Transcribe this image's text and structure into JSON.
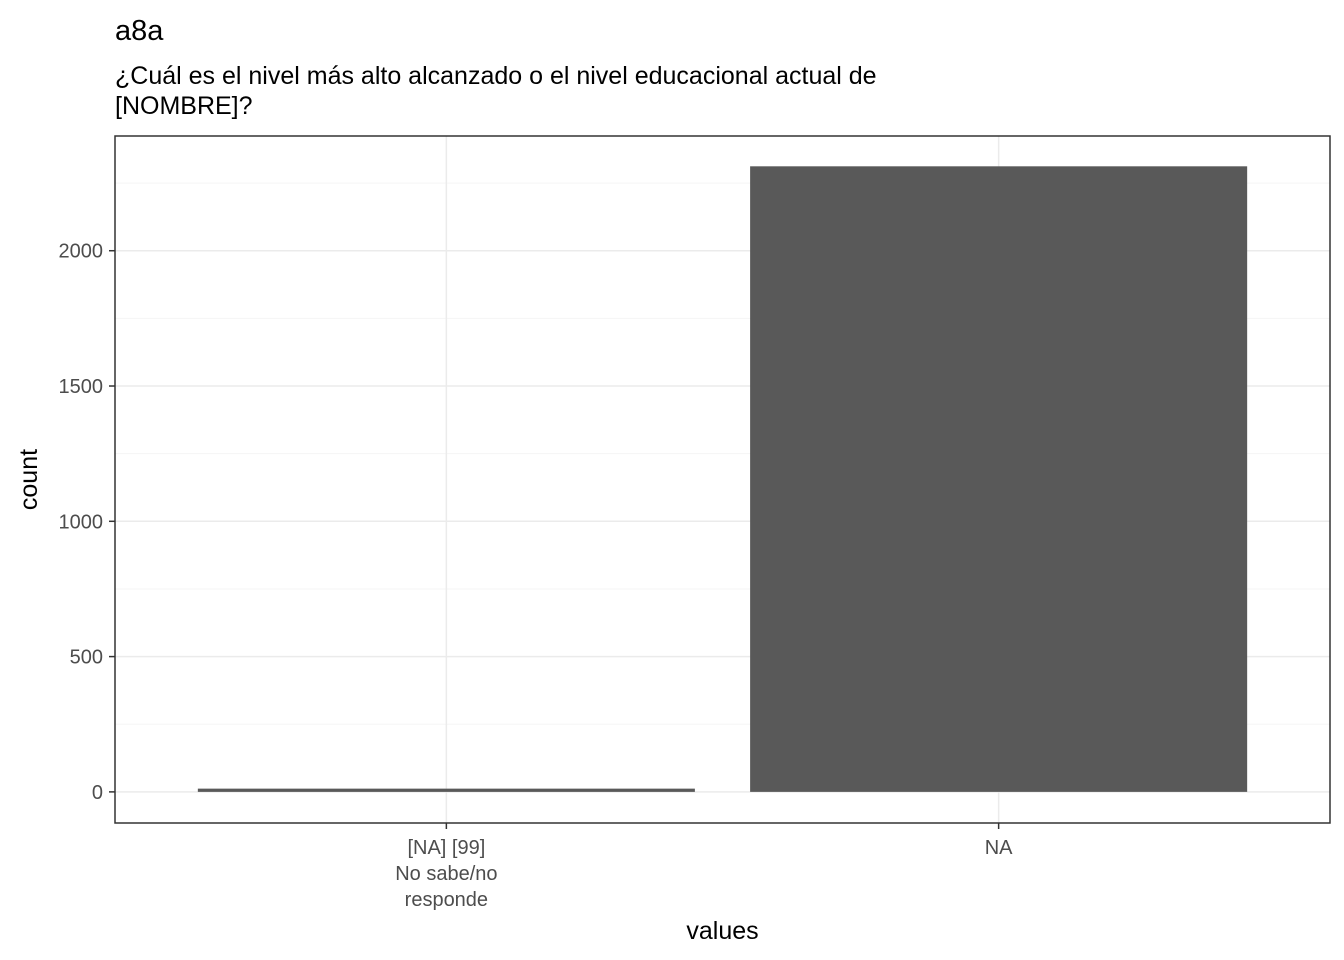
{
  "chart_data": {
    "type": "bar",
    "title": "a8a",
    "subtitle_lines": [
      "¿Cuál es el nivel más alto alcanzado o el nivel educacional actual de",
      "[NOMBRE]?"
    ],
    "categories": [
      {
        "lines": [
          "[NA] [99]",
          "No sabe/no",
          "responde"
        ]
      },
      {
        "lines": [
          "NA"
        ]
      }
    ],
    "values": [
      12,
      2312
    ],
    "xlabel": "values",
    "ylabel": "count",
    "ylim": [
      -115,
      2424
    ],
    "yticks": [
      0,
      500,
      1000,
      1500,
      2000
    ],
    "ytick_labels": [
      "0",
      "500",
      "1000",
      "1500",
      "2000"
    ],
    "grid": true,
    "colors": {
      "bar": "#595959",
      "grid_major": "#ebebeb",
      "grid_minor": "#f5f5f5",
      "panel_border": "#333333",
      "tick_text": "#4d4d4d"
    }
  }
}
